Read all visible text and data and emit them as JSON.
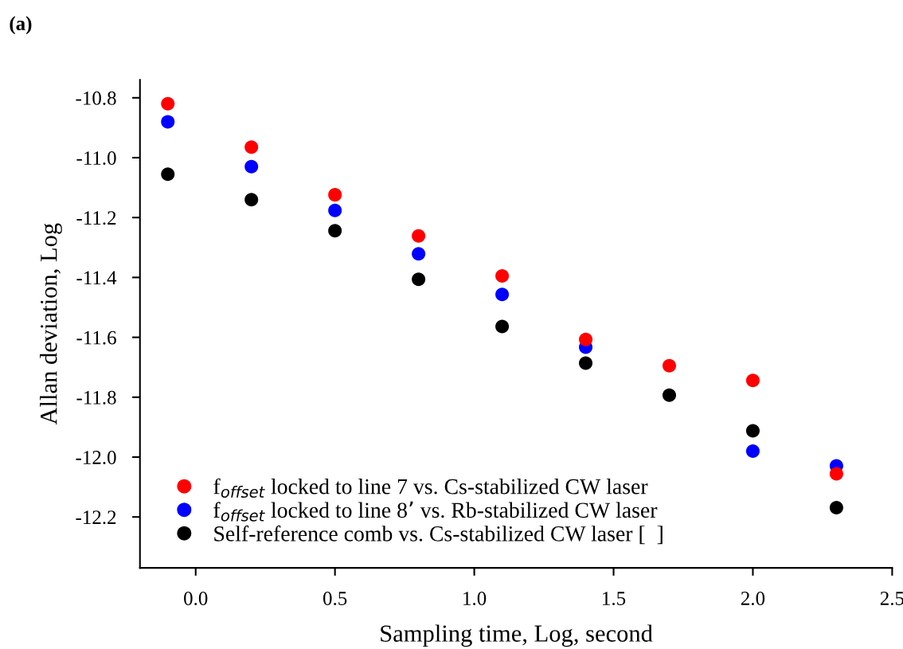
{
  "chart_data": {
    "type": "scatter",
    "xlabel": "Sampling time, Log, second",
    "ylabel": "Allan deviation, Log",
    "annotations": [
      "(a)"
    ],
    "x": [
      -0.1,
      0.2,
      0.5,
      0.8,
      1.1,
      1.4,
      1.7,
      2.0,
      2.3
    ],
    "series": [
      {
        "name": "f$_{offset}$ locked to line 7 vs. Cs-stabilized CW laser",
        "color": "#ff0000",
        "values": [
          -10.82,
          -10.965,
          -11.124,
          -11.261,
          -11.395,
          -11.607,
          -11.695,
          -11.744,
          -12.056
        ]
      },
      {
        "name": "f$_{offset}$ locked to line 8’ vs. Rb-stabilized CW laser",
        "color": "#0000ff",
        "values": [
          -10.88,
          -11.03,
          -11.176,
          -11.321,
          -11.457,
          -11.633,
          null,
          -11.98,
          -12.029
        ]
      },
      {
        "name": "Self-reference comb vs. Cs-stabilized CW laser [  ]",
        "color": "#000000",
        "values": [
          -11.055,
          -11.14,
          -11.244,
          -11.406,
          -11.564,
          -11.686,
          -11.793,
          -11.912,
          -12.169
        ]
      }
    ],
    "xlim": [
      -0.2,
      2.5
    ],
    "xticks": [
      {
        "value": 0,
        "label": "0.0"
      },
      0.5,
      {
        "value": 1,
        "label": "1.0"
      },
      1.5,
      {
        "value": 2,
        "label": "2.0"
      },
      2.5
    ],
    "ylim": [
      -12.37,
      -10.74
    ],
    "yticks": [
      -10.8,
      {
        "value": -11,
        "label": "-11.0"
      },
      -11.2,
      -11.4,
      -11.6,
      -11.8,
      {
        "value": -12,
        "label": "-12.0"
      },
      -12.2
    ],
    "marker": "circle",
    "legend": "bottom left",
    "grid": false
  }
}
